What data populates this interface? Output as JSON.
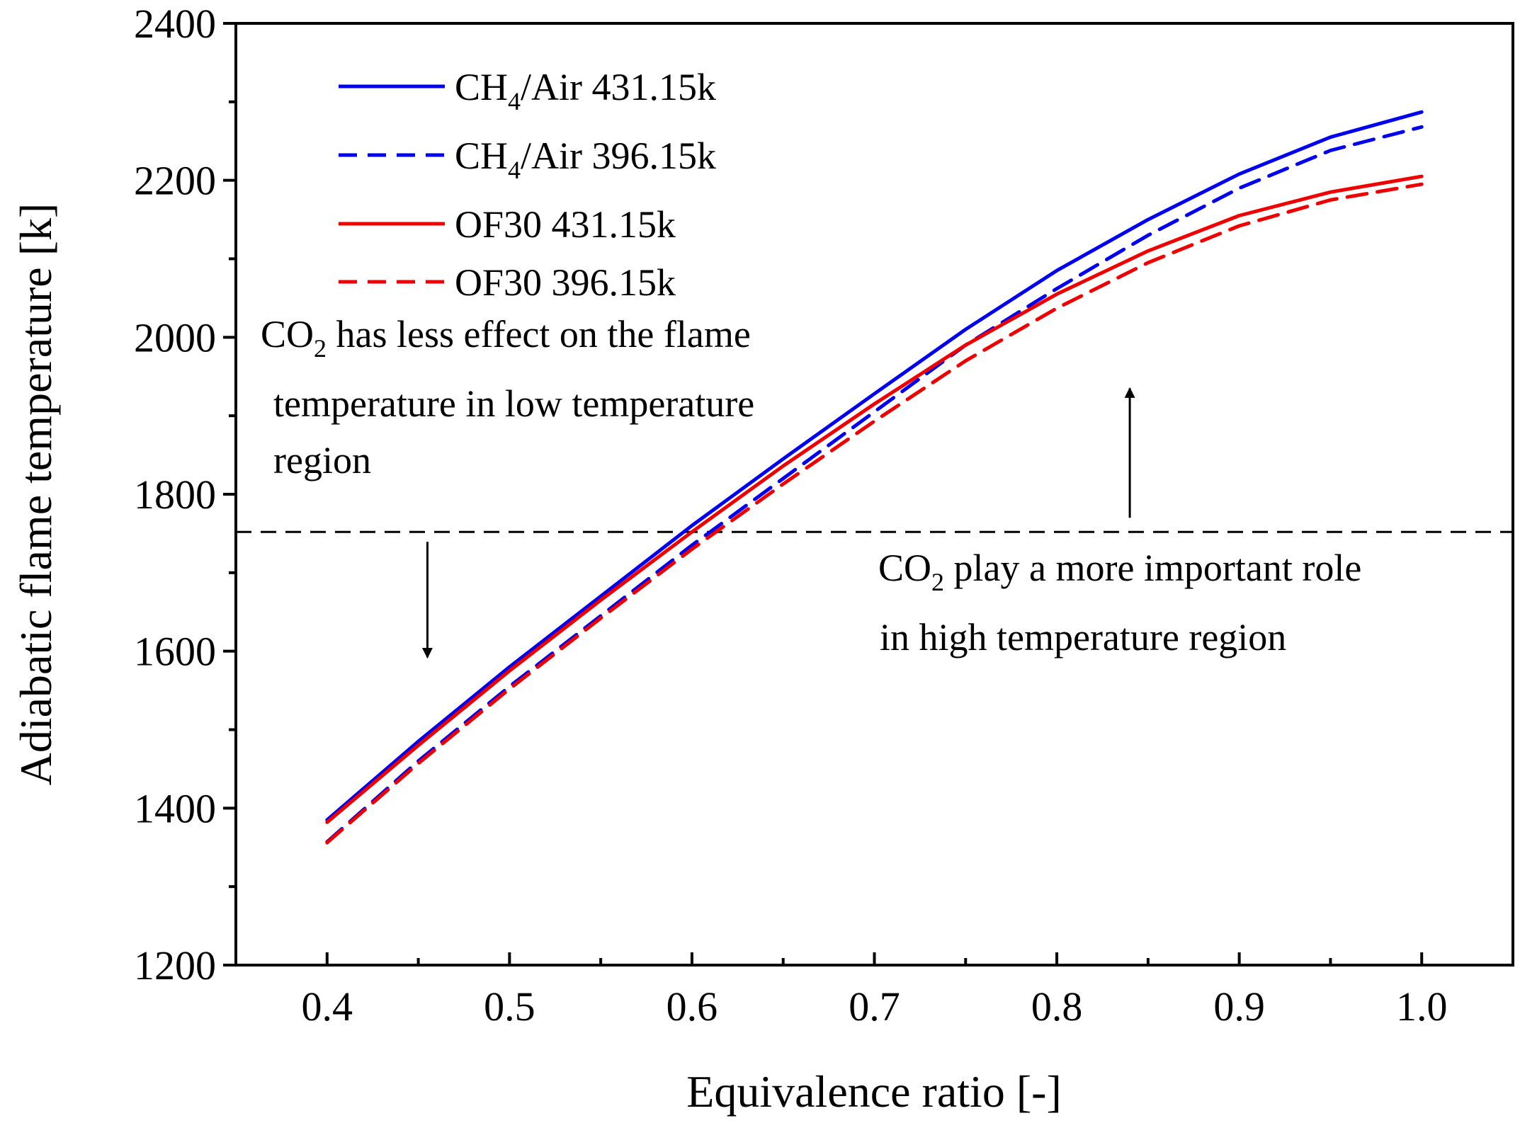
{
  "chart_data": {
    "type": "line",
    "title": "",
    "xlabel": "Equivalence ratio [-]",
    "ylabel": "Adiabatic flame temperature [k]",
    "xlim": [
      0.35,
      1.05
    ],
    "ylim": [
      1200,
      2400
    ],
    "x_ticks": [
      0.4,
      0.5,
      0.6,
      0.7,
      0.8,
      0.9,
      1.0
    ],
    "x_tick_labels": [
      "0.4",
      "0.5",
      "0.6",
      "0.7",
      "0.8",
      "0.9",
      "1.0"
    ],
    "y_ticks": [
      1200,
      1400,
      1600,
      1800,
      2000,
      2200,
      2400
    ],
    "y_tick_labels": [
      "1200",
      "1400",
      "1600",
      "1800",
      "2000",
      "2200",
      "2400"
    ],
    "x": [
      0.4,
      0.45,
      0.5,
      0.55,
      0.6,
      0.65,
      0.7,
      0.75,
      0.8,
      0.85,
      0.9,
      0.95,
      1.0
    ],
    "series": [
      {
        "name": "CH4/Air 431.15k",
        "legend": {
          "pre": "CH",
          "sub": "4",
          "post": "/Air 431.15k"
        },
        "color": "#0000ee",
        "dash": "solid",
        "values": [
          1385,
          1485,
          1580,
          1670,
          1760,
          1845,
          1928,
          2010,
          2085,
          2150,
          2208,
          2255,
          2287
        ]
      },
      {
        "name": "CH4/Air 396.15k",
        "legend": {
          "pre": "CH",
          "sub": "4",
          "post": "/Air 396.15k"
        },
        "color": "#0000ee",
        "dash": "dashed",
        "values": [
          1357,
          1460,
          1555,
          1645,
          1735,
          1820,
          1905,
          1990,
          2062,
          2130,
          2190,
          2238,
          2268
        ]
      },
      {
        "name": "OF30 431.15k",
        "legend": {
          "pre": "OF30 431.15k",
          "sub": "",
          "post": ""
        },
        "color": "#ee0000",
        "dash": "solid",
        "values": [
          1382,
          1480,
          1575,
          1665,
          1752,
          1836,
          1915,
          1990,
          2055,
          2110,
          2155,
          2185,
          2205
        ]
      },
      {
        "name": "OF30 396.15k",
        "legend": {
          "pre": "OF30 396.15k",
          "sub": "",
          "post": ""
        },
        "color": "#ee0000",
        "dash": "dashed",
        "values": [
          1356,
          1457,
          1552,
          1642,
          1730,
          1813,
          1893,
          1970,
          2037,
          2095,
          2142,
          2175,
          2195
        ]
      }
    ],
    "reference_line": {
      "y": 1752,
      "style": "dashed",
      "color": "#000000"
    },
    "annotations": [
      {
        "id": "low",
        "line1": {
          "pre": "CO",
          "sub": "2",
          "post": " has less effect on the flame"
        },
        "line2": "temperature in low temperature",
        "line3": "region",
        "arrow": {
          "x": 0.455,
          "y_from": 1752,
          "y_to": 1592,
          "direction": "down"
        }
      },
      {
        "id": "high",
        "line1": {
          "pre": "CO",
          "sub": "2",
          "post": " play a more important role"
        },
        "line2": "in high temperature region",
        "arrow": {
          "x": 0.84,
          "y_from": 1752,
          "y_to": 1935,
          "direction": "up"
        }
      }
    ],
    "legend_position": "top-left"
  }
}
